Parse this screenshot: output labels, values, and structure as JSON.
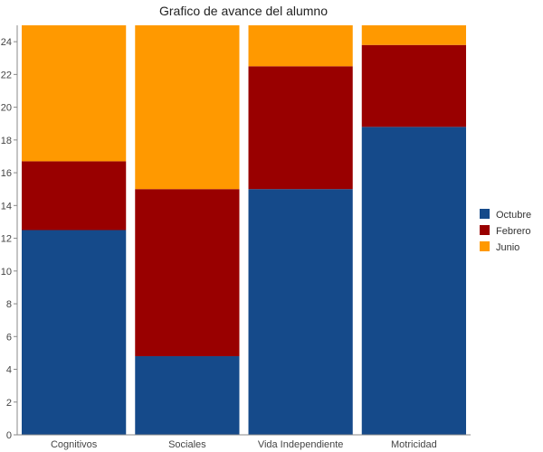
{
  "chart_data": {
    "type": "bar",
    "stacked": true,
    "title": "Grafico de avance del alumno",
    "xlabel": "",
    "ylabel": "",
    "categories": [
      "Cognitivos",
      "Sociales",
      "Vida Independiente",
      "Motricidad"
    ],
    "series": [
      {
        "name": "Octubre",
        "color": "#154a8a",
        "values": [
          12.5,
          4.8,
          15.0,
          18.8
        ]
      },
      {
        "name": "Febrero",
        "color": "#990000",
        "values": [
          4.2,
          10.2,
          7.5,
          5.0
        ]
      },
      {
        "name": "Junio",
        "color": "#ff9900",
        "values": [
          8.3,
          10.0,
          2.5,
          1.2
        ]
      }
    ],
    "ylim": [
      0,
      25
    ],
    "yticks": [
      0,
      2,
      4,
      6,
      8,
      10,
      12,
      14,
      16,
      18,
      20,
      22,
      24
    ],
    "grid": false,
    "legend_position": "right"
  }
}
